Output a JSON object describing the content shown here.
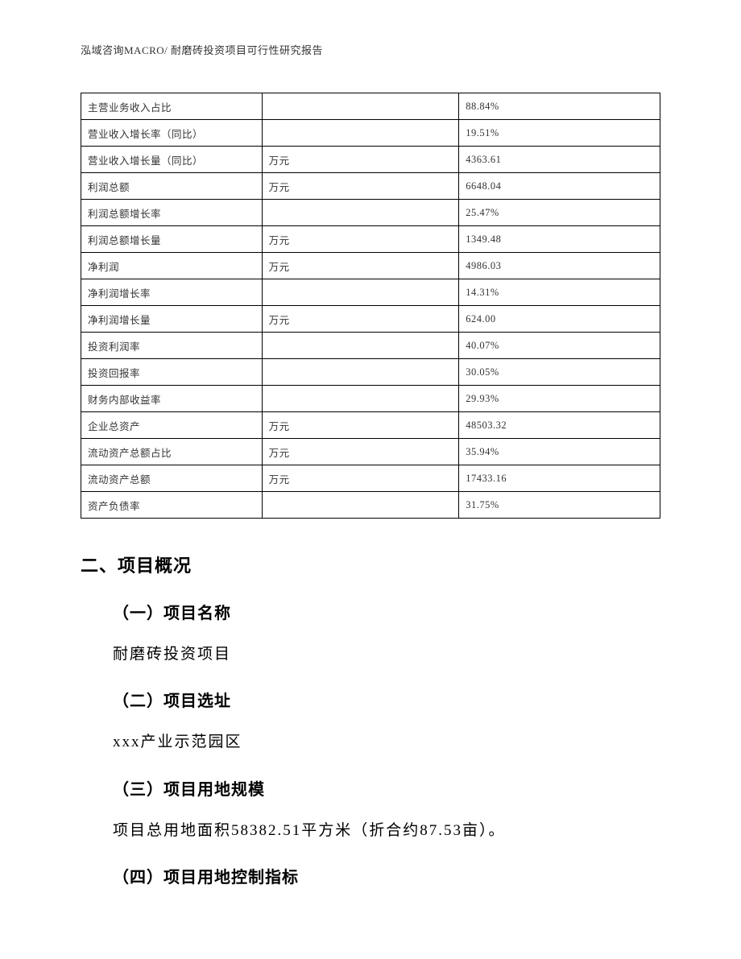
{
  "header": {
    "text": "泓域咨询MACRO/ 耐磨砖投资项目可行性研究报告"
  },
  "table": {
    "rows": [
      {
        "label": "主营业务收入占比",
        "unit": "",
        "value": "88.84%"
      },
      {
        "label": "营业收入增长率（同比）",
        "unit": "",
        "value": "19.51%"
      },
      {
        "label": "营业收入增长量（同比）",
        "unit": "万元",
        "value": "4363.61"
      },
      {
        "label": "利润总额",
        "unit": "万元",
        "value": "6648.04"
      },
      {
        "label": "利润总额增长率",
        "unit": "",
        "value": "25.47%"
      },
      {
        "label": "利润总额增长量",
        "unit": "万元",
        "value": "1349.48"
      },
      {
        "label": "净利润",
        "unit": "万元",
        "value": "4986.03"
      },
      {
        "label": "净利润增长率",
        "unit": "",
        "value": "14.31%"
      },
      {
        "label": "净利润增长量",
        "unit": "万元",
        "value": "624.00"
      },
      {
        "label": "投资利润率",
        "unit": "",
        "value": "40.07%"
      },
      {
        "label": "投资回报率",
        "unit": "",
        "value": "30.05%"
      },
      {
        "label": "财务内部收益率",
        "unit": "",
        "value": "29.93%"
      },
      {
        "label": "企业总资产",
        "unit": "万元",
        "value": "48503.32"
      },
      {
        "label": "流动资产总额占比",
        "unit": "万元",
        "value": "35.94%"
      },
      {
        "label": "流动资产总额",
        "unit": "万元",
        "value": "17433.16"
      },
      {
        "label": "资产负债率",
        "unit": "",
        "value": "31.75%"
      }
    ]
  },
  "sections": {
    "title": "二、项目概况",
    "items": [
      {
        "heading": "（一）项目名称",
        "text": "耐磨砖投资项目"
      },
      {
        "heading": "（二）项目选址",
        "text": "xxx产业示范园区"
      },
      {
        "heading": "（三）项目用地规模",
        "text": "项目总用地面积58382.51平方米（折合约87.53亩）。"
      },
      {
        "heading": "（四）项目用地控制指标",
        "text": ""
      }
    ]
  }
}
